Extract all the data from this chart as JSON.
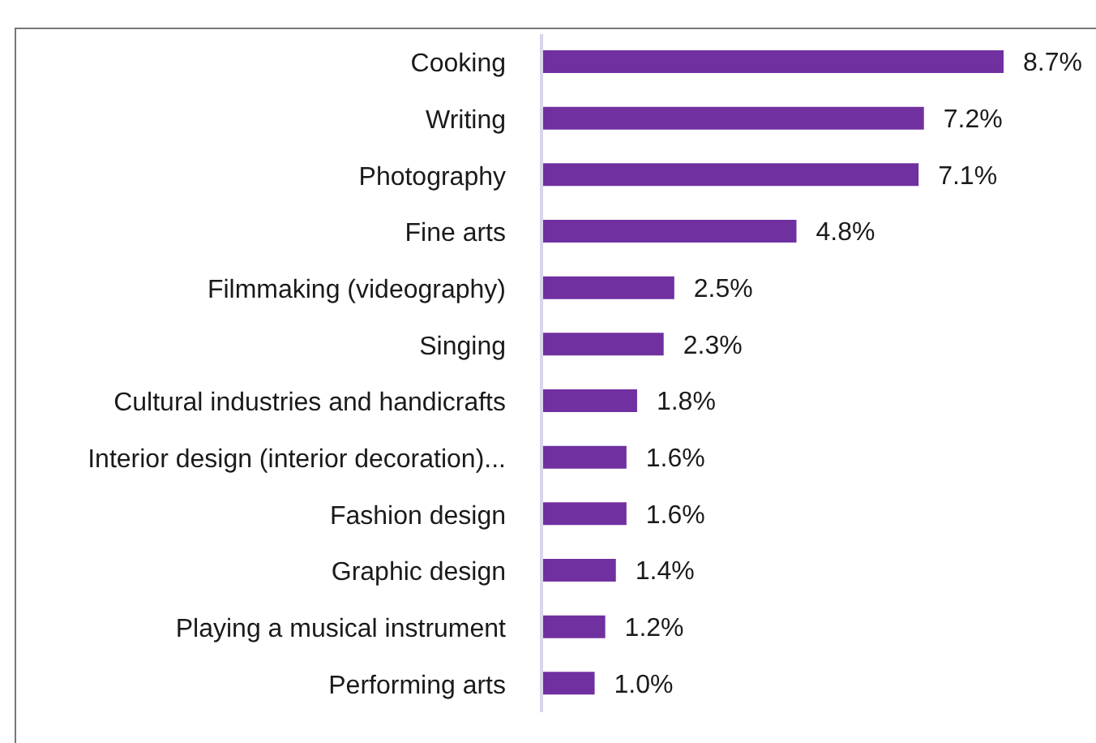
{
  "chart_data": {
    "type": "bar",
    "orientation": "horizontal",
    "categories": [
      "Cooking",
      "Writing",
      "Photography",
      "Fine arts",
      "Filmmaking (videography)",
      "Singing",
      "Cultural industries and handicrafts",
      "Interior design (interior decoration)...",
      "Fashion design",
      "Graphic design",
      "Playing a musical instrument",
      "Performing arts"
    ],
    "values": [
      8.7,
      7.2,
      7.1,
      4.8,
      2.5,
      2.3,
      1.8,
      1.6,
      1.6,
      1.4,
      1.2,
      1.0
    ],
    "value_labels": [
      "8.7%",
      "7.2%",
      "7.1%",
      "4.8%",
      "2.5%",
      "2.3%",
      "1.8%",
      "1.6%",
      "1.6%",
      "1.4%",
      "1.2%",
      "1.0%"
    ],
    "color": "#7030a0"
  }
}
